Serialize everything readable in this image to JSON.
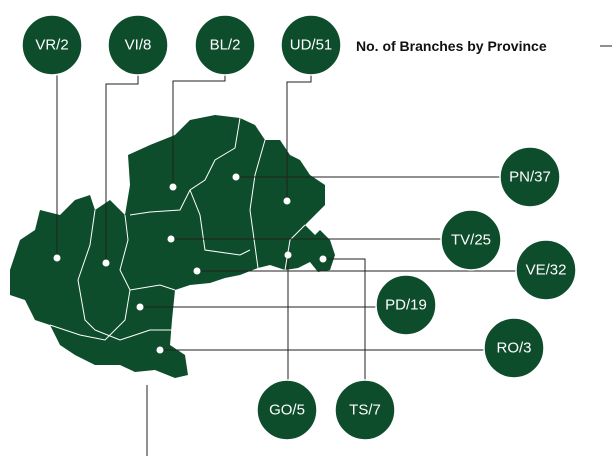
{
  "title": "No. of Branches by Province",
  "provinces": [
    {
      "label": "VR/2"
    },
    {
      "label": "VI/8"
    },
    {
      "label": "BL/2"
    },
    {
      "label": "UD/51"
    },
    {
      "label": "PN/37"
    },
    {
      "label": "TV/25"
    },
    {
      "label": "VE/32"
    },
    {
      "label": "PD/19"
    },
    {
      "label": "RO/3"
    },
    {
      "label": "GO/5"
    },
    {
      "label": "TS/7"
    }
  ]
}
